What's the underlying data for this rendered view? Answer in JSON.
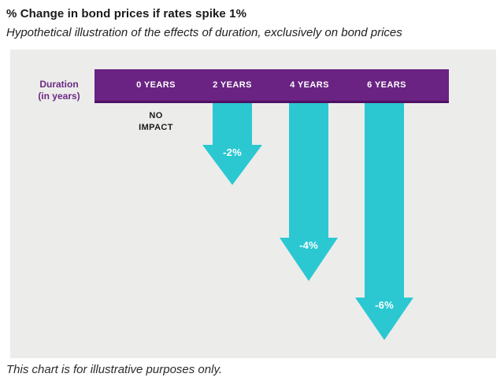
{
  "header": {
    "title": "% Change in bond prices if rates spike 1%",
    "subtitle": "Hypothetical illustration of the effects of duration, exclusively on bond prices"
  },
  "chart": {
    "axis_label_line1": "Duration",
    "axis_label_line2": "(in years)",
    "no_impact_line1": "NO",
    "no_impact_line2": "IMPACT"
  },
  "footer": {
    "caption": "This chart is for illustrative purposes only."
  },
  "chart_data": {
    "type": "bar",
    "title": "% Change in bond prices if rates spike 1%",
    "subtitle": "Hypothetical illustration of the effects of duration, exclusively on bond prices",
    "xlabel": "Duration (in years)",
    "categories": [
      "0 YEARS",
      "2 YEARS",
      "4 YEARS",
      "6 YEARS"
    ],
    "values": [
      0,
      -2,
      -4,
      -6
    ],
    "bar_labels": [
      "NO IMPACT",
      "-2%",
      "-4%",
      "-6%"
    ],
    "ylim": [
      -6,
      0
    ],
    "orientation": "downward-arrows",
    "grid": false,
    "legend": false,
    "colors": {
      "header_bar": "#6A2382",
      "header_bar_edge": "#4E1063",
      "arrow": "#2BC8D2",
      "panel_background": "#ECECEB",
      "axis_label_text": "#6B2A83",
      "bar_label_text": "#FFFFFF"
    },
    "caption": "This chart is for illustrative purposes only."
  }
}
